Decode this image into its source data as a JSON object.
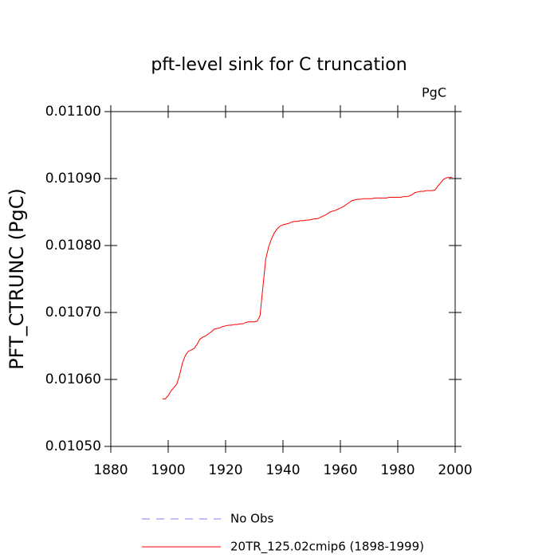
{
  "chart_data": {
    "type": "line",
    "title": "pft-level sink for C truncation",
    "units": "PgC",
    "ylabel": "PFT_CTRUNC  (PgC)",
    "xlim": [
      1880,
      2000
    ],
    "xticks": [
      1880,
      1900,
      1920,
      1940,
      1960,
      1980,
      2000
    ],
    "ylim": [
      0.0105,
      0.011
    ],
    "yticks": [
      {
        "value": 0.0105,
        "label": "0.01050"
      },
      {
        "value": 0.0106,
        "label": "0.01060"
      },
      {
        "value": 0.0107,
        "label": "0.01070"
      },
      {
        "value": 0.0108,
        "label": "0.01080"
      },
      {
        "value": 0.0109,
        "label": "0.01090"
      },
      {
        "value": 0.011,
        "label": "0.01100"
      }
    ],
    "x": [
      1898,
      1899,
      1900,
      1901,
      1902,
      1903,
      1904,
      1905,
      1906,
      1907,
      1908,
      1909,
      1910,
      1911,
      1912,
      1913,
      1914,
      1915,
      1916,
      1917,
      1918,
      1919,
      1920,
      1921,
      1922,
      1923,
      1924,
      1925,
      1926,
      1927,
      1928,
      1929,
      1930,
      1931,
      1932,
      1933,
      1934,
      1935,
      1936,
      1937,
      1938,
      1939,
      1940,
      1941,
      1942,
      1943,
      1944,
      1945,
      1946,
      1947,
      1948,
      1949,
      1950,
      1951,
      1952,
      1953,
      1954,
      1955,
      1956,
      1957,
      1958,
      1959,
      1960,
      1961,
      1962,
      1963,
      1964,
      1965,
      1966,
      1967,
      1968,
      1969,
      1970,
      1971,
      1972,
      1973,
      1974,
      1975,
      1976,
      1977,
      1978,
      1979,
      1980,
      1981,
      1982,
      1983,
      1984,
      1985,
      1986,
      1987,
      1988,
      1989,
      1990,
      1991,
      1992,
      1993,
      1994,
      1995,
      1996,
      1997,
      1998,
      1999
    ],
    "series": [
      {
        "name": "No Obs",
        "color": "#8080ff",
        "dash": true,
        "values": [
          null,
          null,
          null,
          null,
          null,
          null,
          null,
          null,
          null,
          null,
          null,
          null,
          null,
          null,
          null,
          null,
          null,
          null,
          null,
          null,
          null,
          null,
          null,
          null,
          null,
          null,
          null,
          null,
          null,
          null,
          null,
          null,
          null,
          null,
          null,
          null,
          null,
          null,
          null,
          null,
          null,
          null,
          null,
          null,
          null,
          null,
          null,
          null,
          null,
          null,
          null,
          null,
          null,
          null,
          null,
          null,
          null,
          null,
          null,
          null,
          null,
          null,
          null,
          null,
          null,
          null,
          null,
          null,
          null,
          null,
          null,
          null,
          null,
          null,
          null,
          null,
          null,
          null,
          null,
          null,
          null,
          null,
          null,
          null,
          null,
          null,
          null,
          null,
          null,
          null,
          null,
          null,
          null,
          null,
          null,
          null,
          null,
          null,
          null,
          null,
          null,
          null
        ]
      },
      {
        "name": "20TR_125.02cmip6 (1898-1999)",
        "color": "#ff0000",
        "dash": false,
        "values": [
          0.010571,
          0.010571,
          0.010576,
          0.010583,
          0.010588,
          0.010593,
          0.010607,
          0.010625,
          0.010636,
          0.010642,
          0.010644,
          0.010646,
          0.010652,
          0.01066,
          0.010663,
          0.010665,
          0.010668,
          0.010671,
          0.010675,
          0.010676,
          0.010677,
          0.010679,
          0.01068,
          0.010681,
          0.010681,
          0.010682,
          0.010682,
          0.010683,
          0.010683,
          0.010685,
          0.010686,
          0.010686,
          0.010686,
          0.010687,
          0.010695,
          0.010738,
          0.01078,
          0.010798,
          0.01081,
          0.010819,
          0.010825,
          0.010829,
          0.010831,
          0.010832,
          0.010833,
          0.010835,
          0.010836,
          0.010836,
          0.010837,
          0.010837,
          0.010838,
          0.010838,
          0.010839,
          0.01084,
          0.01084,
          0.010842,
          0.010844,
          0.010846,
          0.010849,
          0.010851,
          0.010852,
          0.010854,
          0.010856,
          0.010858,
          0.010861,
          0.010864,
          0.010867,
          0.010868,
          0.010869,
          0.010869,
          0.01087,
          0.01087,
          0.01087,
          0.01087,
          0.010871,
          0.010871,
          0.010871,
          0.010871,
          0.010871,
          0.010872,
          0.010872,
          0.010872,
          0.010872,
          0.010872,
          0.010873,
          0.010873,
          0.010874,
          0.010876,
          0.010879,
          0.01088,
          0.010881,
          0.010881,
          0.010882,
          0.010882,
          0.010882,
          0.010883,
          0.010889,
          0.010894,
          0.010899,
          0.010901,
          0.010902,
          0.010902
        ]
      }
    ]
  }
}
